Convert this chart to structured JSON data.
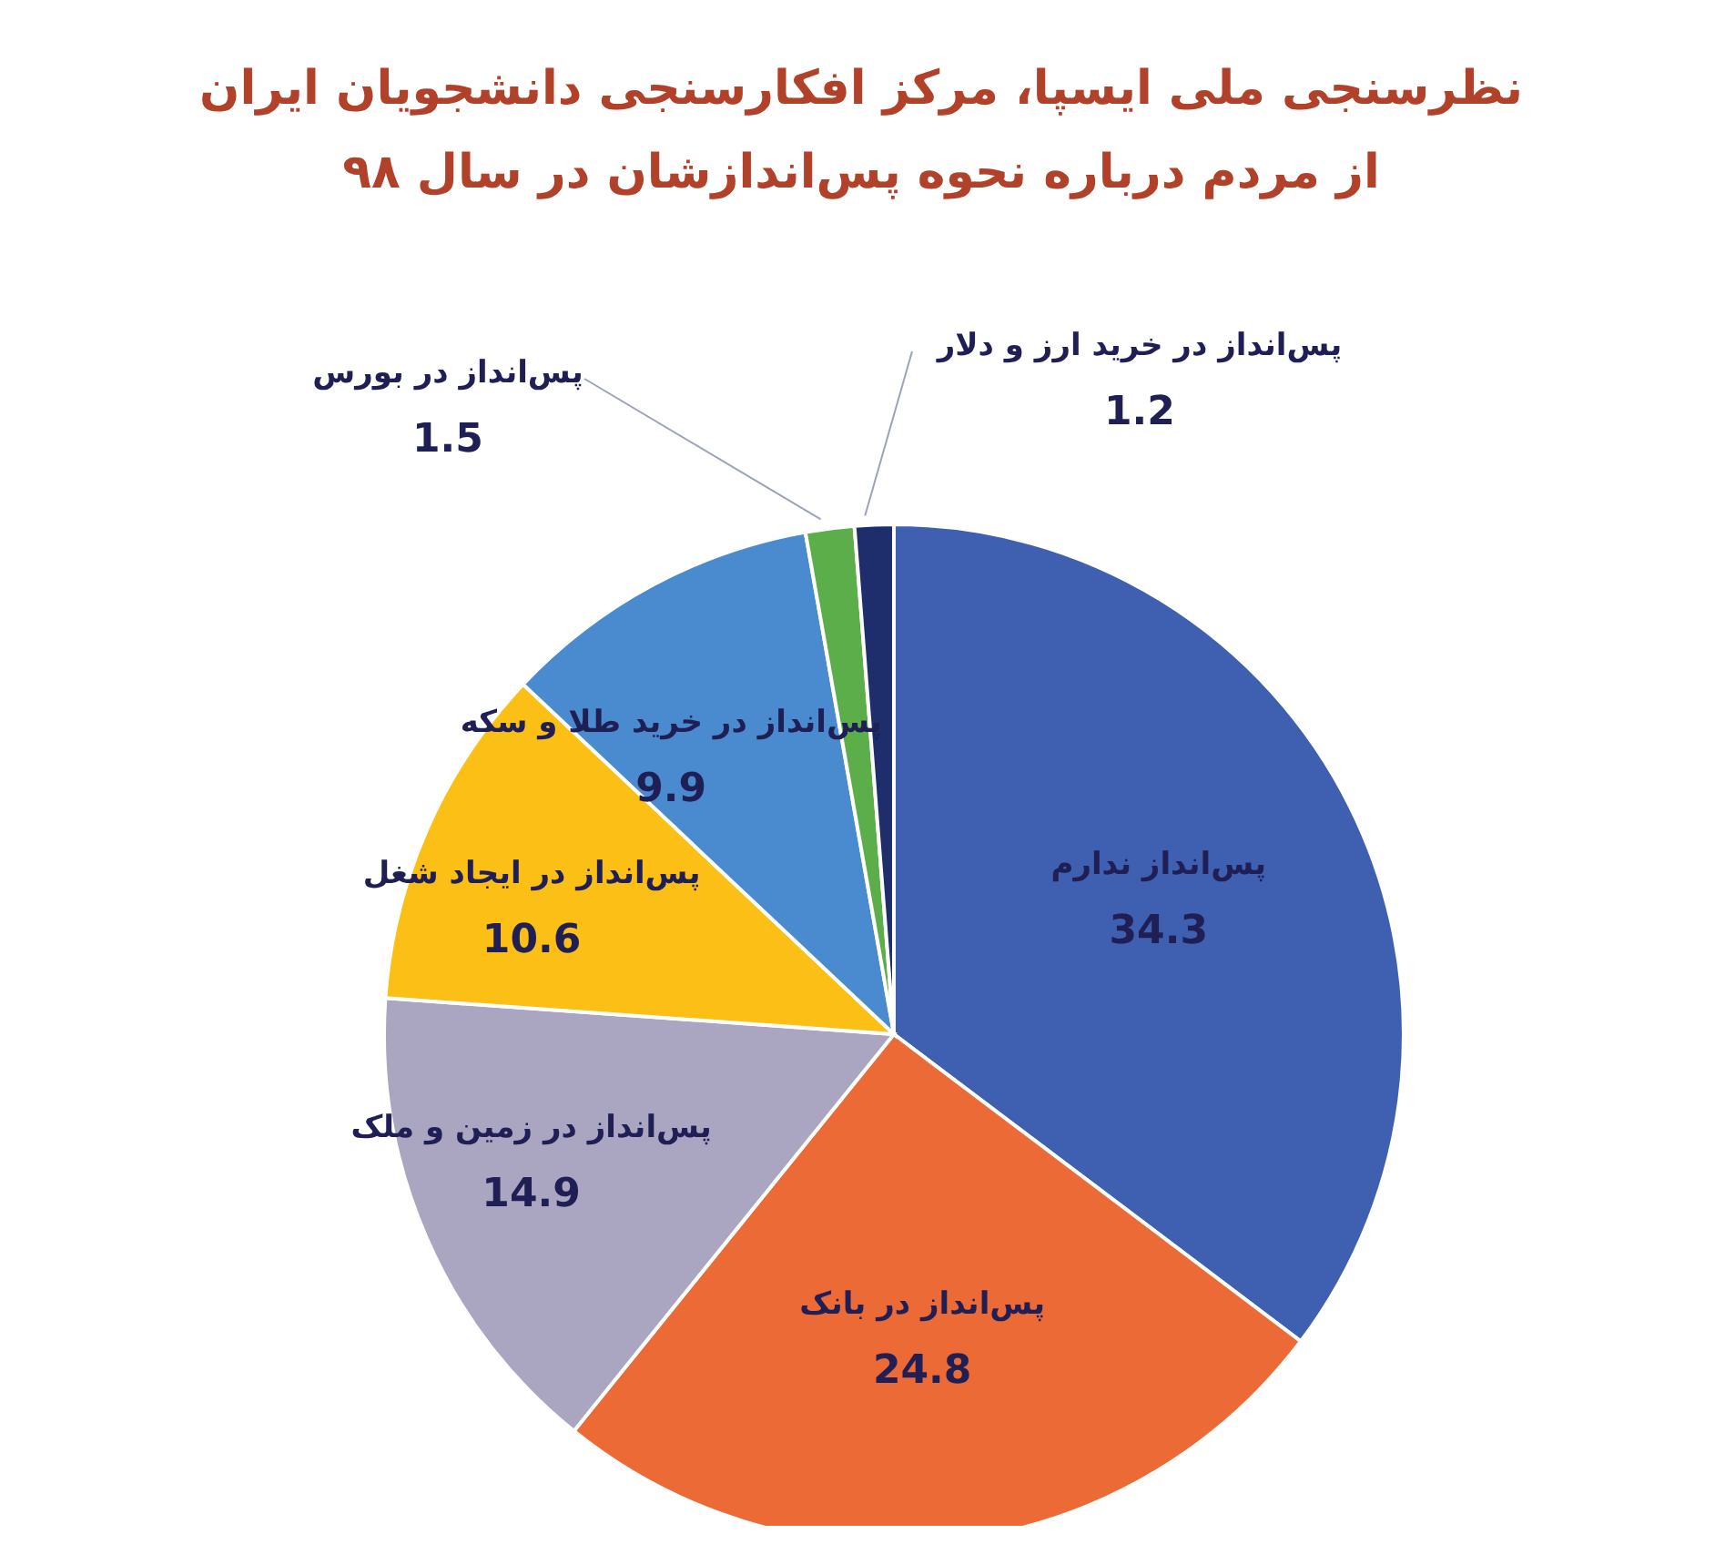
{
  "chart_data": {
    "type": "pie",
    "title": "نظرسنجی ملی ایسپا، مرکز افکارسنجی دانشجویان ایران",
    "subtitle": "از مردم درباره نحوه پس‌اندازشان در سال ۹۸",
    "categories": [
      "پس‌انداز ندارم",
      "پس‌انداز در بانک",
      "پس‌انداز در زمین و ملک",
      "پس‌انداز در ایجاد شغل",
      "پس‌انداز در خرید طلا و سکه",
      "پس‌انداز در بورس",
      "پس‌انداز در خرید ارز و دلار"
    ],
    "values": [
      34.3,
      24.8,
      14.9,
      10.6,
      9.9,
      1.5,
      1.2
    ],
    "colors": [
      "#3f5fb0",
      "#ec6a36",
      "#aaa5c1",
      "#fbbf16",
      "#4a8bd0",
      "#5cae4a",
      "#1e2d6b"
    ],
    "data_labels": true
  }
}
